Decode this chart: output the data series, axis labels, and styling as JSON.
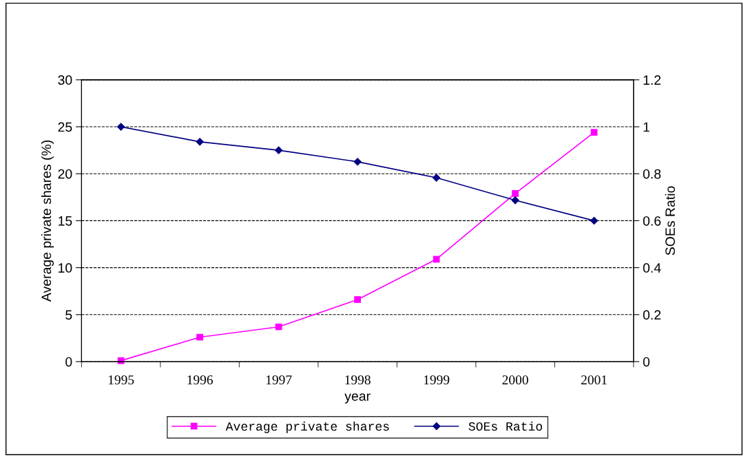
{
  "chart_data": {
    "type": "line",
    "xlabel": "year",
    "ylabel": "Average private shares (%)",
    "y2label": "SOEs Ratio",
    "categories": [
      "1995",
      "1996",
      "1997",
      "1998",
      "1999",
      "2000",
      "2001"
    ],
    "series": [
      {
        "name": "Average private shares",
        "color": "#ff00ff",
        "marker": "square",
        "values": [
          0.1,
          2.6,
          3.7,
          6.6,
          10.9,
          17.9,
          24.4
        ]
      },
      {
        "name": "SOEs Ratio",
        "color": "#000080",
        "marker": "diamond",
        "axis": "y2",
        "values": [
          1.0,
          0.936,
          0.9,
          0.851,
          0.783,
          0.687,
          0.6
        ]
      }
    ],
    "ylim": [
      0,
      30
    ],
    "yticks": [
      0,
      5,
      10,
      15,
      20,
      25,
      30
    ],
    "y2lim": [
      0,
      1.2
    ],
    "y2ticks": [
      0,
      0.2,
      0.4,
      0.6,
      0.8,
      1,
      1.2
    ],
    "grid": "y",
    "line_style": "solid",
    "legend": "bottom"
  }
}
